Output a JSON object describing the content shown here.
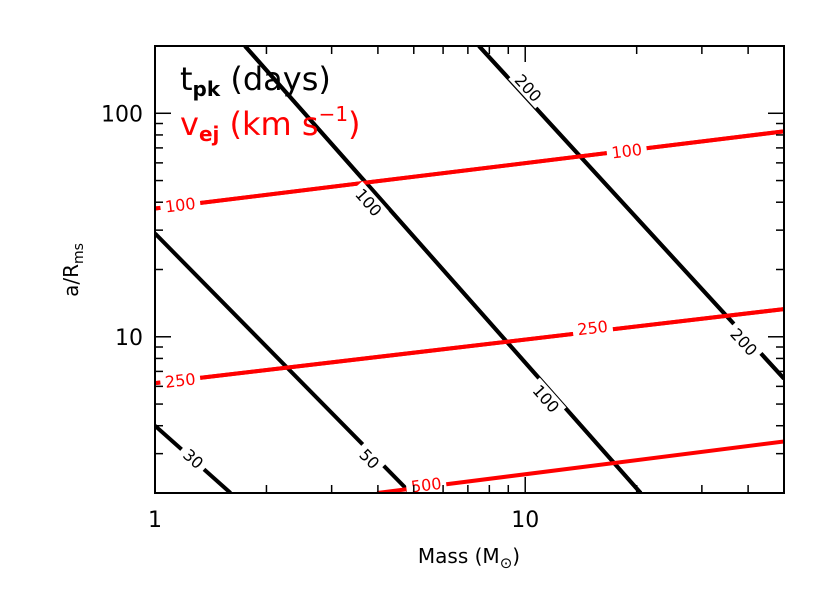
{
  "chart_data": {
    "type": "line",
    "title": "",
    "xlabel": {
      "main": "Mass (M",
      "sub": "⊙",
      "close": ")"
    },
    "ylabel": {
      "main": "a/R",
      "sub": "ms"
    },
    "xscale": "log",
    "yscale": "log",
    "xlim": [
      1,
      50
    ],
    "ylim": [
      2,
      200
    ],
    "grid": false,
    "x_ticks": [
      {
        "value": 1,
        "label": "1"
      },
      {
        "value": 10,
        "label": "10"
      }
    ],
    "y_ticks": [
      {
        "value": 10,
        "label": "10"
      },
      {
        "value": 100,
        "label": "100"
      }
    ],
    "legend": {
      "placement": "top-left",
      "entries": [
        {
          "main": "t",
          "sub": "pk",
          "rest": " (days)",
          "color": "#000000"
        },
        {
          "main": "v",
          "sub": "ej",
          "rest": " (km s",
          "sup": "−1",
          "close": ")",
          "color": "#ff0000"
        }
      ]
    },
    "series": [
      {
        "name": "t_pk",
        "level_label": "30",
        "color": "#000000",
        "points": [
          [
            1.0,
            4.0
          ],
          [
            1.6,
            2.0
          ]
        ],
        "label_at": [
          1.27,
          2.85
        ]
      },
      {
        "name": "t_pk",
        "level_label": "50",
        "color": "#000000",
        "points": [
          [
            1.0,
            29.0
          ],
          [
            4.9,
            2.0
          ]
        ],
        "label_at": [
          3.8,
          2.85
        ]
      },
      {
        "name": "t_pk",
        "level_label": "100",
        "color": "#000000",
        "points": [
          [
            1.75,
            200.0
          ],
          [
            20.5,
            2.0
          ]
        ],
        "label_at": [
          11.4,
          5.3
        ]
      },
      {
        "name": "t_pk",
        "level_label": "100",
        "color": "#000000",
        "points": [
          [
            1.75,
            200.0
          ],
          [
            20.5,
            2.0
          ]
        ],
        "label_at": [
          3.78,
          40.0
        ]
      },
      {
        "name": "t_pk",
        "level_label": "200",
        "color": "#000000",
        "points": [
          [
            7.5,
            200.0
          ],
          [
            50.0,
            6.5
          ]
        ],
        "label_at": [
          10.2,
          130.0
        ]
      },
      {
        "name": "t_pk",
        "level_label": "200",
        "color": "#000000",
        "points": [
          [
            7.5,
            200.0
          ],
          [
            50.0,
            6.5
          ]
        ],
        "label_at": [
          39.0,
          9.5
        ]
      },
      {
        "name": "v_ej",
        "level_label": "100",
        "color": "#ff0000",
        "points": [
          [
            1.0,
            37.5
          ],
          [
            50.0,
            83.0
          ]
        ],
        "label_at": [
          1.17,
          39.0
        ]
      },
      {
        "name": "v_ej",
        "level_label": "100",
        "color": "#ff0000",
        "points": [
          [
            1.0,
            37.5
          ],
          [
            50.0,
            83.0
          ]
        ],
        "label_at": [
          18.8,
          68.0
        ]
      },
      {
        "name": "v_ej",
        "level_label": "250",
        "color": "#ff0000",
        "points": [
          [
            1.0,
            6.2
          ],
          [
            50.0,
            13.3
          ]
        ],
        "label_at": [
          1.17,
          6.4
        ]
      },
      {
        "name": "v_ej",
        "level_label": "250",
        "color": "#ff0000",
        "points": [
          [
            1.0,
            6.2
          ],
          [
            50.0,
            13.3
          ]
        ],
        "label_at": [
          15.2,
          11.0
        ]
      },
      {
        "name": "v_ej",
        "level_label": "500",
        "color": "#ff0000",
        "points": [
          [
            3.98,
            2.0
          ],
          [
            50.0,
            3.4
          ]
        ],
        "label_at": [
          5.4,
          2.18
        ]
      }
    ]
  }
}
